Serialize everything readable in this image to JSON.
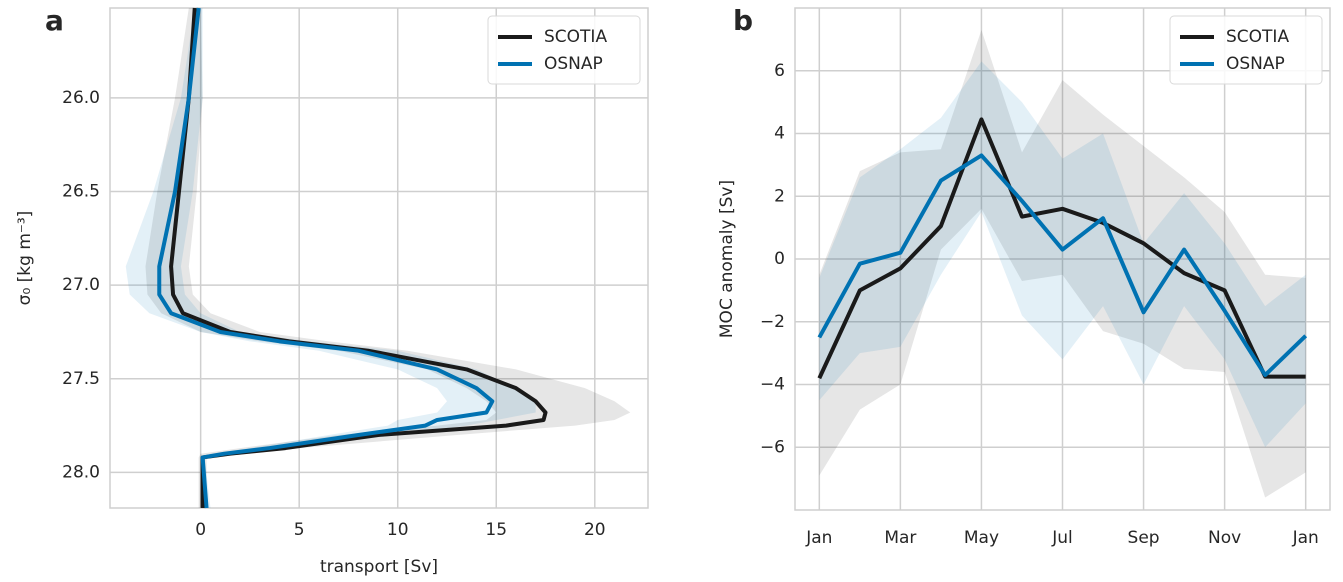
{
  "chart_data": [
    {
      "type": "line",
      "panel_label": "a",
      "xlabel": "transport [Sv]",
      "ylabel": "σ₀ [kg m⁻³]",
      "xlim": [
        -4.6,
        22.7
      ],
      "xticks": [
        0,
        5,
        10,
        15,
        20
      ],
      "ylim": [
        25.52,
        28.19
      ],
      "y_inverted": true,
      "yticks": [
        {
          "value": 26,
          "label": "26.0"
        },
        {
          "value": 26.5,
          "label": "26.5"
        },
        {
          "value": 27,
          "label": "27.0"
        },
        {
          "value": 27.5,
          "label": "27.5"
        },
        {
          "value": 28,
          "label": "28.0"
        }
      ],
      "grid": true,
      "legend": "upper right",
      "series": [
        {
          "name": "SCOTIA",
          "color": "#1a1a1a",
          "x": [
            -0.3,
            -0.6,
            -1.1,
            -1.5,
            -1.4,
            -0.9,
            1.5,
            4.5,
            8.5,
            13.5,
            16.0,
            17.0,
            17.5,
            17.4,
            15.5,
            9.0,
            4.3,
            1.5,
            0.1,
            0.1
          ],
          "values": [
            25.52,
            26.0,
            26.5,
            26.9,
            27.05,
            27.15,
            27.25,
            27.3,
            27.35,
            27.45,
            27.55,
            27.62,
            27.68,
            27.72,
            27.75,
            27.8,
            27.87,
            27.9,
            27.92,
            28.19
          ],
          "x_lower": [
            -0.6,
            -1.3,
            -2.2,
            -2.8,
            -2.7,
            -2.0,
            0,
            3,
            7,
            11.5,
            13.5,
            14.5,
            15,
            14.5,
            12,
            7,
            2,
            0,
            -0.1,
            -0.1
          ],
          "x_upper": [
            0,
            0.1,
            -0.2,
            -0.6,
            -0.4,
            0.5,
            3,
            6.5,
            10.5,
            16,
            19.5,
            21,
            21.8,
            21,
            19,
            13,
            5,
            2.5,
            0.3,
            0.3
          ]
        },
        {
          "name": "OSNAP",
          "color": "#0072b2",
          "x": [
            -0.1,
            -0.6,
            -1.3,
            -2.1,
            -2.1,
            -1.5,
            1.0,
            4.0,
            8.0,
            12.0,
            14.0,
            14.8,
            14.5,
            12.0,
            11.4,
            8.0,
            3.5,
            1.2,
            0.1,
            0.3
          ],
          "values": [
            25.52,
            26.0,
            26.5,
            26.9,
            27.05,
            27.15,
            27.25,
            27.3,
            27.35,
            27.45,
            27.55,
            27.62,
            27.68,
            27.72,
            27.75,
            27.8,
            27.87,
            27.9,
            27.92,
            28.19
          ],
          "x_lower": [
            -0.3,
            -1,
            -2.4,
            -3.8,
            -3.6,
            -2.6,
            0,
            2.5,
            6,
            10,
            12,
            12.5,
            12,
            10,
            9.5,
            6.5,
            2.5,
            0.5,
            0,
            0.1
          ],
          "x_upper": [
            0.1,
            0.1,
            -0.4,
            -1,
            -0.8,
            0,
            2,
            5.5,
            10,
            14,
            16,
            17,
            17,
            15,
            13.5,
            10,
            4.5,
            2,
            0.2,
            0.5
          ]
        }
      ]
    },
    {
      "type": "line",
      "panel_label": "b",
      "ylabel": "MOC anomaly [Sv]",
      "categories": [
        "Jan",
        null,
        "Mar",
        null,
        "May",
        null,
        "Jul",
        null,
        "Sep",
        null,
        "Nov",
        null,
        "Jan"
      ],
      "ylim": [
        -8,
        8
      ],
      "yticks": [
        {
          "value": -6,
          "label": "−6"
        },
        {
          "value": -4,
          "label": "−4"
        },
        {
          "value": -2,
          "label": "−2"
        },
        0,
        2,
        4,
        6
      ],
      "grid": true,
      "legend": "upper right",
      "series": [
        {
          "name": "SCOTIA",
          "color": "#1a1a1a",
          "values": [
            -3.8,
            -1.0,
            -0.3,
            1.05,
            4.45,
            1.35,
            1.6,
            1.15,
            0.5,
            -0.45,
            -1.0,
            -3.75,
            -3.75
          ],
          "lower": [
            -6.9,
            -4.8,
            -4.0,
            0.3,
            1.6,
            -0.7,
            -0.5,
            -2.3,
            -2.7,
            -3.5,
            -3.6,
            -7.6,
            -6.8
          ],
          "upper": [
            -0.5,
            2.8,
            3.4,
            3.5,
            7.3,
            3.4,
            5.7,
            4.6,
            3.6,
            2.6,
            1.5,
            -0.5,
            -0.6
          ]
        },
        {
          "name": "OSNAP",
          "color": "#0072b2",
          "values": [
            -2.5,
            -0.15,
            0.2,
            2.5,
            3.3,
            1.85,
            0.3,
            1.3,
            -1.7,
            0.3,
            -1.65,
            -3.7,
            -2.45
          ],
          "lower": [
            -4.5,
            -3.0,
            -2.8,
            -0.5,
            1.5,
            -1.8,
            -3.2,
            -1.5,
            -4.0,
            -1.5,
            -3.2,
            -6.0,
            -4.6
          ],
          "upper": [
            -0.6,
            2.6,
            3.5,
            4.5,
            6.3,
            5.0,
            3.2,
            4.0,
            0.5,
            2.1,
            0.5,
            -1.5,
            -0.5
          ]
        }
      ]
    }
  ]
}
